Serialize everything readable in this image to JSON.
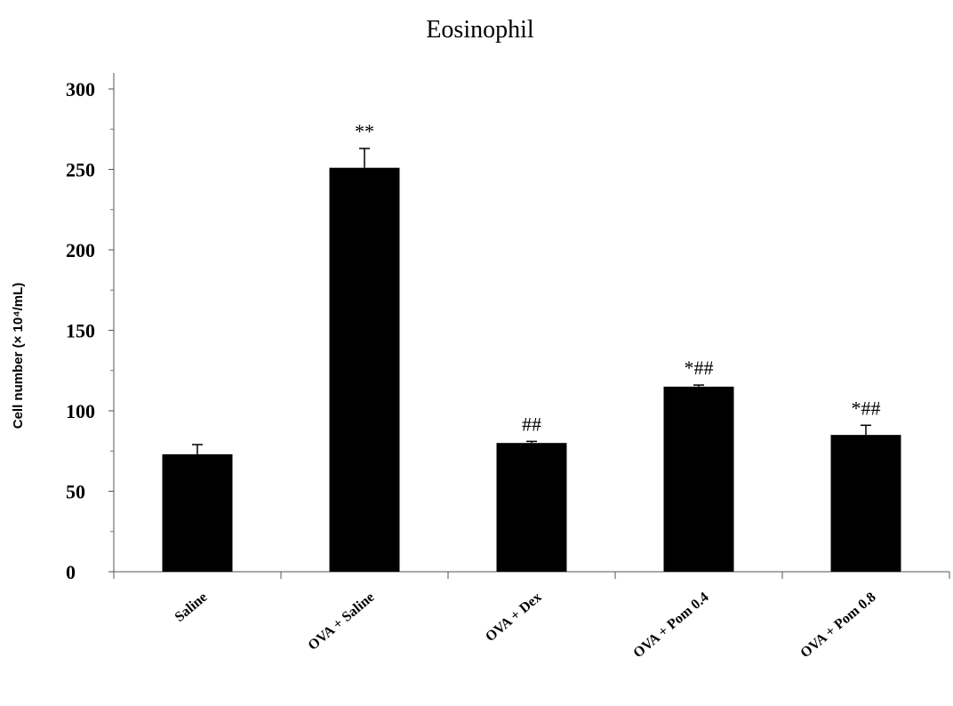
{
  "chart_data": {
    "type": "bar",
    "title": "Eosinophil",
    "ylabel": "Cell number (× 10⁴/mL)",
    "xlabel": "",
    "categories": [
      "Saline",
      "OVA + Saline",
      "OVA + Dex",
      "OVA + Pom 0.4",
      "OVA + Pom 0.8"
    ],
    "values": [
      73,
      251,
      80,
      115,
      85
    ],
    "errors": [
      6,
      12,
      1,
      1,
      6
    ],
    "annotations": [
      "",
      "**",
      "##",
      "*##",
      "*##"
    ],
    "yticks": [
      0,
      50,
      100,
      150,
      200,
      250,
      300
    ],
    "ylim": [
      0,
      300
    ],
    "grid": false,
    "legend": "none",
    "bar_color": "#000000"
  }
}
